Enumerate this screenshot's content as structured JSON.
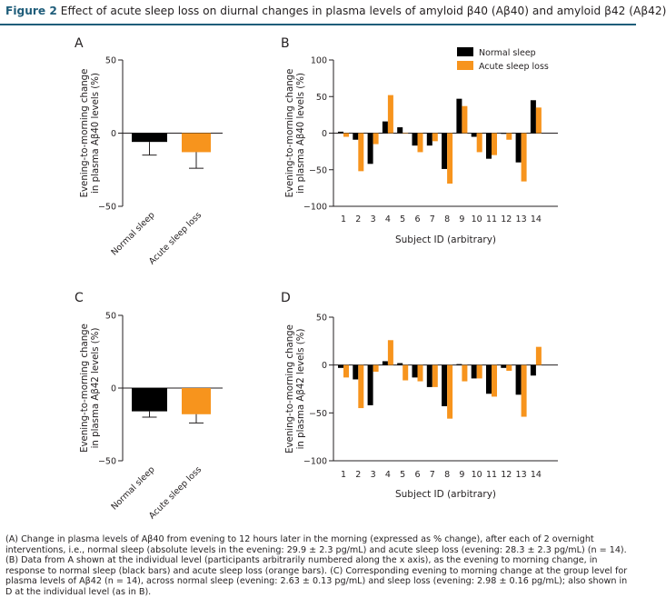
{
  "figure": {
    "label": "Figure 2",
    "title": "Effect of acute sleep loss on diurnal changes in plasma levels of amyloid β40 (Aβ40) and amyloid β42 (Aβ42)",
    "caption": "(A) Change in plasma levels of Aβ40 from evening to 12 hours later in the morning (expressed as % change), after each of 2 overnight interventions, i.e., normal sleep (absolute levels in the evening: 29.9 ± 2.3 pg/mL) and acute sleep loss (evening: 28.3 ± 2.3 pg/mL) (n = 14). (B) Data from A shown at the individual level (participants arbitrarily numbered along the x axis), as the evening to morning change, in response to normal sleep (black bars) and acute sleep loss (orange bars). (C) Corresponding evening to morning change at the group level for plasma levels of Aβ42 (n = 14), across normal sleep (evening: 2.63 ± 0.13 pg/mL) and sleep loss (evening: 2.98 ± 0.16 pg/mL); also shown in D at the individual level (as in B)."
  },
  "colors": {
    "normal": "#000000",
    "loss": "#f7941d",
    "accent": "#1f5d7a"
  },
  "chart_data": [
    {
      "panel": "A",
      "type": "bar",
      "ylabel": "Evening-to-morning change in plasma Aβ40 levels (%)",
      "ylim": [
        -50,
        50
      ],
      "yticks": [
        50,
        0,
        -50
      ],
      "categories": [
        "Normal sleep",
        "Acute sleep loss"
      ],
      "values": [
        -6,
        -13
      ],
      "errors": [
        9,
        11
      ]
    },
    {
      "panel": "B",
      "type": "bar",
      "xlabel": "Subject ID (arbitrary)",
      "ylabel": "Evening-to-morning change in plasma Aβ40 levels (%)",
      "ylim": [
        -100,
        100
      ],
      "yticks": [
        100,
        50,
        0,
        -50,
        -100
      ],
      "categories": [
        "1",
        "2",
        "3",
        "4",
        "5",
        "6",
        "7",
        "8",
        "9",
        "10",
        "11",
        "12",
        "13",
        "14"
      ],
      "series": [
        {
          "name": "Normal sleep",
          "values": [
            2,
            -9,
            -42,
            16,
            8,
            -17,
            -17,
            -49,
            47,
            -5,
            -35,
            -1,
            -40,
            45
          ]
        },
        {
          "name": "Acute sleep loss",
          "values": [
            -5,
            -52,
            -15,
            52,
            0,
            -26,
            -11,
            -69,
            37,
            -26,
            -30,
            -9,
            -66,
            35
          ]
        }
      ],
      "legend_position": "top-right"
    },
    {
      "panel": "C",
      "type": "bar",
      "ylabel": "Evening-to-morning change in plasma Aβ42 levels (%)",
      "ylim": [
        -50,
        50
      ],
      "yticks": [
        50,
        0,
        -50
      ],
      "categories": [
        "Normal sleep",
        "Acute sleep loss"
      ],
      "values": [
        -16,
        -18
      ],
      "errors": [
        4,
        6
      ]
    },
    {
      "panel": "D",
      "type": "bar",
      "xlabel": "Subject ID (arbitrary)",
      "ylabel": "Evening-to-morning change in plasma Aβ42 levels (%)",
      "ylim": [
        -100,
        50
      ],
      "yticks": [
        50,
        0,
        -50,
        -100
      ],
      "categories": [
        "1",
        "2",
        "3",
        "4",
        "5",
        "6",
        "7",
        "8",
        "9",
        "10",
        "11",
        "12",
        "13",
        "14"
      ],
      "series": [
        {
          "name": "Normal sleep",
          "values": [
            -3,
            -15,
            -42,
            4,
            2,
            -13,
            -23,
            -43,
            1,
            -14,
            -30,
            -3,
            -31,
            -11
          ]
        },
        {
          "name": "Acute sleep loss",
          "values": [
            -13,
            -45,
            -7,
            26,
            -16,
            -17,
            -23,
            -56,
            -17,
            -14,
            -33,
            -6,
            -54,
            19
          ]
        }
      ]
    }
  ]
}
